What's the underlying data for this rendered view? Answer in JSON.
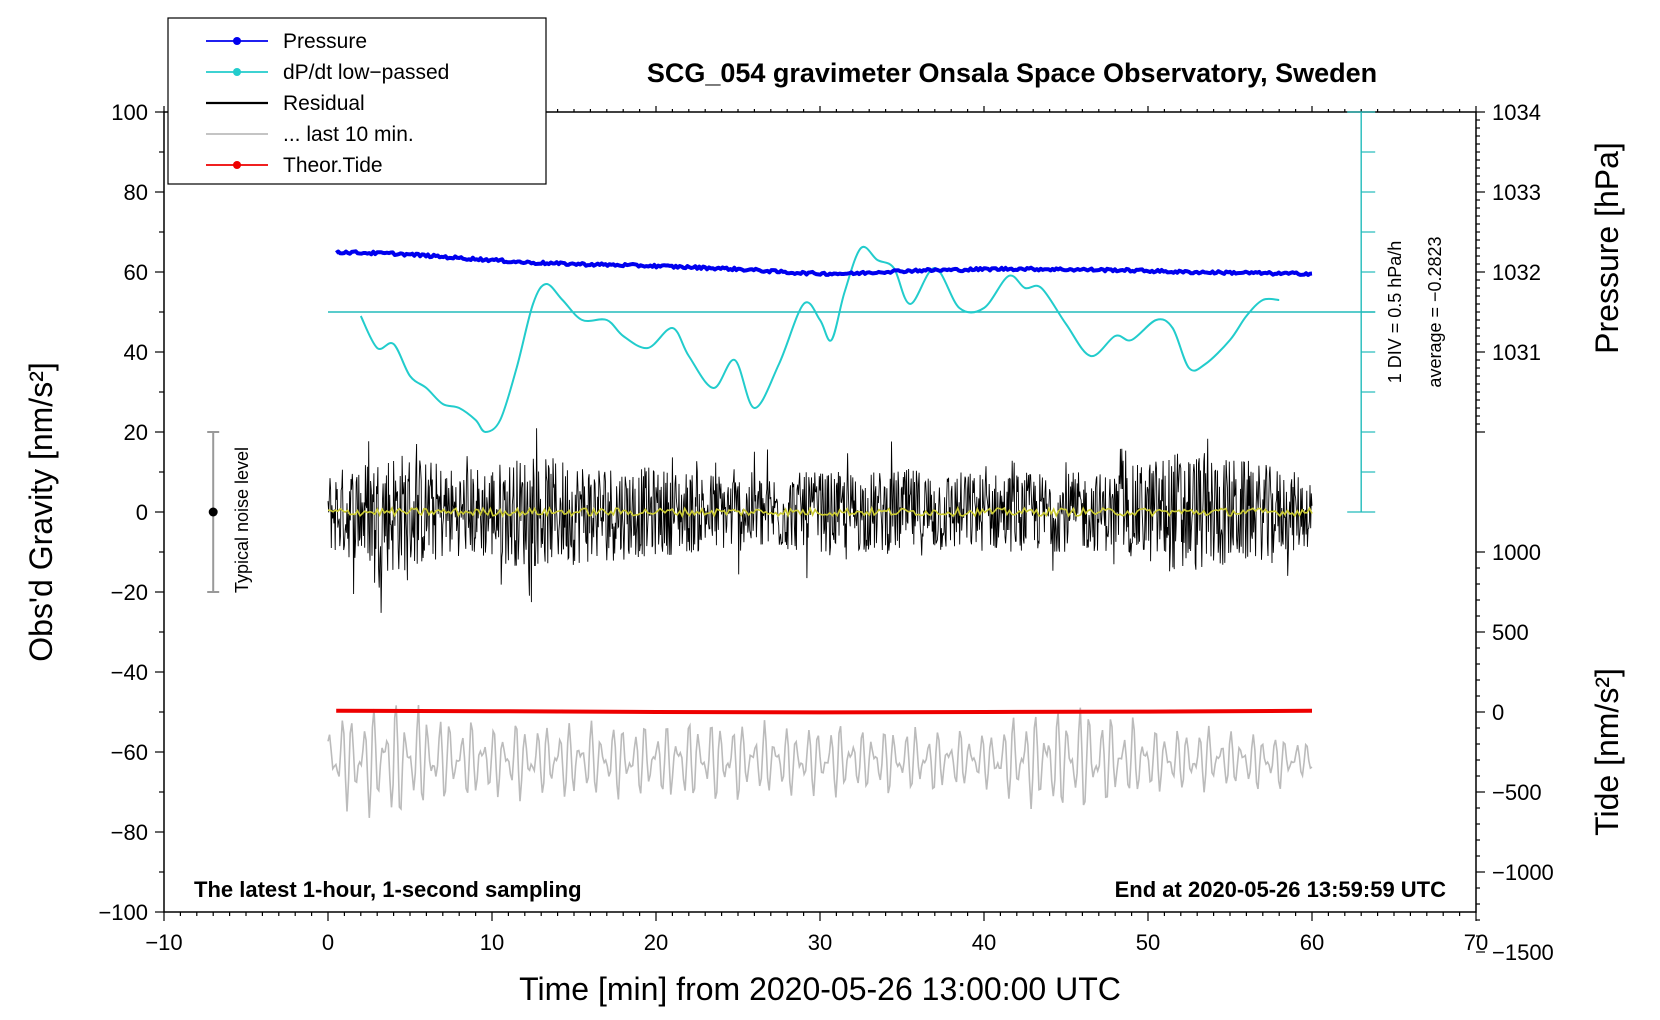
{
  "chart_data": {
    "type": "line",
    "title": "SCG_054 gravimeter Onsala Space Observatory, Sweden",
    "subtitle_left": "The latest 1-hour, 1-second sampling",
    "subtitle_right": "End at 2020-05-26 13:59:59 UTC",
    "xlabel": "Time [min] from 2020-05-26 13:00:00 UTC",
    "ylabel": "Obs'd Gravity [nm/s²]",
    "y2label_pressure": "Pressure [hPa]",
    "y2label_tide": "Tide [nm/s²]",
    "xlim": [
      -10,
      70
    ],
    "ylim": [
      -100,
      100
    ],
    "x_ticks": [
      "−10",
      "0",
      "10",
      "20",
      "30",
      "40",
      "50",
      "60",
      "70"
    ],
    "y_ticks": [
      "100",
      "80",
      "60",
      "40",
      "20",
      "0",
      "−20",
      "−40",
      "−60",
      "−80",
      "−100"
    ],
    "pressure_ticks": [
      "1034",
      "1033",
      "1032",
      "1031"
    ],
    "pressure_tick_values": [
      1034,
      1033,
      1032,
      1031
    ],
    "pressure_axis_map": {
      "hPa_at_y0": 1029,
      "nm_per_hPa": 20
    },
    "tide_ticks": [
      "1000",
      "500",
      "0",
      "−500",
      "−1000",
      "−1500"
    ],
    "tide_tick_values": [
      1000,
      500,
      0,
      -500,
      -1000,
      -1500
    ],
    "tide_axis_map": {
      "nm_at_y_minus50": 0,
      "tide_per_y": 25
    },
    "dpdt_scale_label": "1 DIV = 0.5 hPa/h",
    "dpdt_average_label": "average = −0.2823",
    "dpdt_zero_y": 50,
    "dpdt_divisions": 10,
    "dpdt_div_size_y": 10,
    "dpdt_scale_x": 63,
    "noise_label": "Typical noise level",
    "noise_x": -7,
    "noise_range": [
      -20,
      20
    ],
    "legend": [
      {
        "label": "Pressure",
        "color": "#0000ee",
        "marker": true
      },
      {
        "label": "dP/dt low−passed",
        "color": "#22cccc",
        "marker": true
      },
      {
        "label": "Residual",
        "color": "#000000",
        "marker": false
      },
      {
        "label": "... last 10 min.",
        "color": "#bbbbbb",
        "marker": false
      },
      {
        "label": "Theor.Tide",
        "color": "#ee0000",
        "marker": true
      }
    ],
    "series": [
      {
        "name": "Pressure",
        "color": "#0000ee",
        "x": [
          0.5,
          2,
          4,
          6,
          8,
          10,
          12,
          14,
          16,
          18,
          20,
          22,
          24,
          26,
          28,
          30,
          32,
          34,
          36,
          38,
          40,
          42,
          44,
          46,
          48,
          50,
          52,
          54,
          56,
          58,
          60
        ],
        "y": [
          65,
          64.8,
          64.6,
          64.1,
          63.5,
          63,
          62.4,
          62.1,
          61.9,
          61.7,
          61.5,
          61.2,
          60.9,
          60.5,
          59.9,
          59.6,
          59.6,
          60.1,
          60.4,
          60.5,
          60.7,
          60.8,
          60.7,
          60.6,
          60.5,
          60.3,
          60,
          59.9,
          59.8,
          59.6,
          59.6
        ]
      },
      {
        "name": "dP/dt low−passed",
        "color": "#22cccc",
        "x": [
          2,
          3,
          4,
          5,
          6,
          7,
          8,
          9,
          9.6,
          10.5,
          11.5,
          12.5,
          13.3,
          14.3,
          15.5,
          17,
          18,
          19.5,
          21,
          22,
          23.5,
          24.8,
          26,
          27.5,
          29,
          30,
          30.7,
          31.5,
          32.5,
          33.5,
          34.5,
          35.5,
          37,
          38.5,
          40,
          41.5,
          42.5,
          43.5,
          45,
          46.5,
          48,
          49,
          50.5,
          51.5,
          52.5,
          53.5,
          55,
          56,
          57,
          58
        ],
        "y": [
          49,
          41,
          42,
          34,
          31,
          27,
          26,
          23,
          20,
          23,
          36,
          52,
          57,
          53,
          48,
          48,
          44,
          41,
          46,
          39,
          31,
          38,
          26,
          37,
          52,
          48,
          43,
          55,
          66,
          63,
          61,
          52,
          61,
          51,
          51,
          59,
          56,
          56,
          47,
          39,
          44,
          43,
          48,
          46,
          36,
          37,
          43,
          49,
          53,
          53
        ]
      },
      {
        "name": "Residual",
        "color": "#000000",
        "envelope_x": [
          0,
          4,
          8,
          12,
          16,
          20,
          24,
          28,
          32,
          36,
          40,
          44,
          48,
          52,
          56,
          60
        ],
        "envelope_y": [
          10,
          16,
          11,
          14,
          13,
          11,
          10,
          10,
          10,
          11,
          10,
          10,
          10,
          16,
          13,
          9
        ]
      },
      {
        "name": "Residual smoothed",
        "color": "#cccc33",
        "y_level": 0
      },
      {
        "name": "... last 10 min.",
        "color": "#bbbbbb",
        "center_y": -62,
        "envelope_x": [
          0,
          4,
          8,
          12,
          16,
          20,
          24,
          28,
          32,
          36,
          40,
          43,
          46,
          50,
          54,
          58,
          60
        ],
        "envelope_y": [
          12,
          18,
          11,
          11,
          11,
          11,
          12,
          10,
          10,
          10,
          8,
          15,
          17,
          10,
          9,
          8,
          4
        ]
      },
      {
        "name": "Theor.Tide",
        "color": "#ee0000",
        "x": [
          0.5,
          10,
          20,
          30,
          40,
          50,
          60
        ],
        "y": [
          -49.7,
          -49.8,
          -50,
          -50.1,
          -50,
          -49.9,
          -49.7
        ]
      }
    ]
  }
}
